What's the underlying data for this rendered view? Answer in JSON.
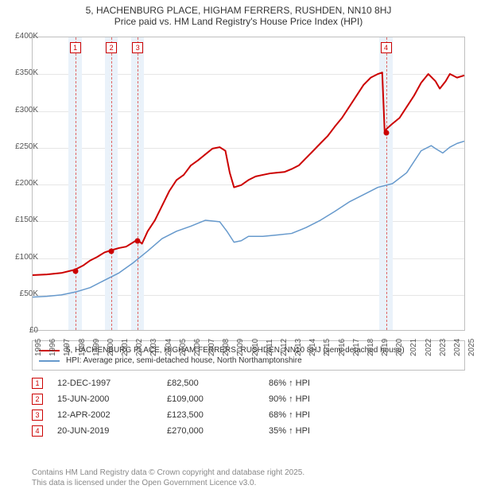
{
  "title": {
    "line1": "5, HACHENBURG PLACE, HIGHAM FERRERS, RUSHDEN, NN10 8HJ",
    "line2": "Price paid vs. HM Land Registry's House Price Index (HPI)"
  },
  "chart": {
    "type": "line",
    "background_color": "#ffffff",
    "grid_color": "#e6e6e6",
    "border_color": "#bfbfbf",
    "x": {
      "min": 1995,
      "max": 2025,
      "ticks": [
        1995,
        1996,
        1997,
        1998,
        1999,
        2000,
        2001,
        2002,
        2003,
        2004,
        2005,
        2006,
        2007,
        2008,
        2009,
        2010,
        2011,
        2012,
        2013,
        2014,
        2015,
        2016,
        2017,
        2018,
        2019,
        2020,
        2021,
        2022,
        2023,
        2024,
        2025
      ]
    },
    "y": {
      "min": 0,
      "max": 400000,
      "tick_step": 50000,
      "tick_labels": [
        "£0",
        "£50K",
        "£100K",
        "£150K",
        "£200K",
        "£250K",
        "£300K",
        "£350K",
        "£400K"
      ]
    },
    "band_color": "#eaf2fa",
    "dash_color": "#e06666",
    "markers": [
      {
        "n": "1",
        "year": 1997.95
      },
      {
        "n": "2",
        "year": 2000.46
      },
      {
        "n": "3",
        "year": 2002.28
      },
      {
        "n": "4",
        "year": 2019.47
      }
    ],
    "series": [
      {
        "name": "property",
        "color": "#cc0000",
        "width": 2,
        "points": [
          [
            1995,
            75000
          ],
          [
            1996,
            76000
          ],
          [
            1997,
            78000
          ],
          [
            1997.95,
            82500
          ],
          [
            1998.5,
            88000
          ],
          [
            1999,
            95000
          ],
          [
            1999.5,
            100000
          ],
          [
            2000,
            106000
          ],
          [
            2000.46,
            109000
          ],
          [
            2001,
            112000
          ],
          [
            2001.5,
            114000
          ],
          [
            2002,
            120000
          ],
          [
            2002.28,
            123500
          ],
          [
            2002.6,
            118000
          ],
          [
            2003,
            135000
          ],
          [
            2003.5,
            150000
          ],
          [
            2004,
            170000
          ],
          [
            2004.5,
            190000
          ],
          [
            2005,
            205000
          ],
          [
            2005.5,
            212000
          ],
          [
            2006,
            225000
          ],
          [
            2006.5,
            232000
          ],
          [
            2007,
            240000
          ],
          [
            2007.5,
            248000
          ],
          [
            2008,
            250000
          ],
          [
            2008.4,
            245000
          ],
          [
            2008.7,
            215000
          ],
          [
            2009,
            195000
          ],
          [
            2009.5,
            198000
          ],
          [
            2010,
            205000
          ],
          [
            2010.5,
            210000
          ],
          [
            2011,
            212000
          ],
          [
            2011.5,
            214000
          ],
          [
            2012,
            215000
          ],
          [
            2012.5,
            216000
          ],
          [
            2013,
            220000
          ],
          [
            2013.5,
            225000
          ],
          [
            2014,
            235000
          ],
          [
            2014.5,
            245000
          ],
          [
            2015,
            255000
          ],
          [
            2015.5,
            265000
          ],
          [
            2016,
            278000
          ],
          [
            2016.5,
            290000
          ],
          [
            2017,
            305000
          ],
          [
            2017.5,
            320000
          ],
          [
            2018,
            335000
          ],
          [
            2018.5,
            345000
          ],
          [
            2019,
            350000
          ],
          [
            2019.3,
            352000
          ],
          [
            2019.47,
            270000
          ],
          [
            2019.6,
            275000
          ],
          [
            2020,
            282000
          ],
          [
            2020.5,
            290000
          ],
          [
            2021,
            305000
          ],
          [
            2021.5,
            320000
          ],
          [
            2022,
            338000
          ],
          [
            2022.5,
            350000
          ],
          [
            2023,
            340000
          ],
          [
            2023.3,
            330000
          ],
          [
            2023.7,
            340000
          ],
          [
            2024,
            350000
          ],
          [
            2024.5,
            345000
          ],
          [
            2025,
            348000
          ]
        ]
      },
      {
        "name": "hpi",
        "color": "#6699cc",
        "width": 1.5,
        "points": [
          [
            1995,
            45000
          ],
          [
            1996,
            46000
          ],
          [
            1997,
            48000
          ],
          [
            1998,
            52000
          ],
          [
            1999,
            58000
          ],
          [
            2000,
            68000
          ],
          [
            2001,
            78000
          ],
          [
            2002,
            92000
          ],
          [
            2003,
            108000
          ],
          [
            2004,
            125000
          ],
          [
            2005,
            135000
          ],
          [
            2006,
            142000
          ],
          [
            2007,
            150000
          ],
          [
            2008,
            148000
          ],
          [
            2008.5,
            135000
          ],
          [
            2009,
            120000
          ],
          [
            2009.5,
            122000
          ],
          [
            2010,
            128000
          ],
          [
            2011,
            128000
          ],
          [
            2012,
            130000
          ],
          [
            2013,
            132000
          ],
          [
            2014,
            140000
          ],
          [
            2015,
            150000
          ],
          [
            2016,
            162000
          ],
          [
            2017,
            175000
          ],
          [
            2018,
            185000
          ],
          [
            2019,
            195000
          ],
          [
            2020,
            200000
          ],
          [
            2021,
            215000
          ],
          [
            2022,
            245000
          ],
          [
            2022.7,
            252000
          ],
          [
            2023,
            248000
          ],
          [
            2023.5,
            242000
          ],
          [
            2024,
            250000
          ],
          [
            2024.5,
            255000
          ],
          [
            2025,
            258000
          ]
        ]
      }
    ]
  },
  "legend": [
    {
      "color": "#cc0000",
      "label": "5, HACHENBURG PLACE, HIGHAM FERRERS, RUSHDEN, NN10 8HJ (semi-detached house)"
    },
    {
      "color": "#6699cc",
      "label": "HPI: Average price, semi-detached house, North Northamptonshire"
    }
  ],
  "sales": [
    {
      "n": "1",
      "date": "12-DEC-1997",
      "price": "£82,500",
      "dir": "86% ↑ HPI"
    },
    {
      "n": "2",
      "date": "15-JUN-2000",
      "price": "£109,000",
      "dir": "90% ↑ HPI"
    },
    {
      "n": "3",
      "date": "12-APR-2002",
      "price": "£123,500",
      "dir": "68% ↑ HPI"
    },
    {
      "n": "4",
      "date": "20-JUN-2019",
      "price": "£270,000",
      "dir": "35% ↑ HPI"
    }
  ],
  "footer": {
    "line1": "Contains HM Land Registry data © Crown copyright and database right 2025.",
    "line2": "This data is licensed under the Open Government Licence v3.0."
  }
}
